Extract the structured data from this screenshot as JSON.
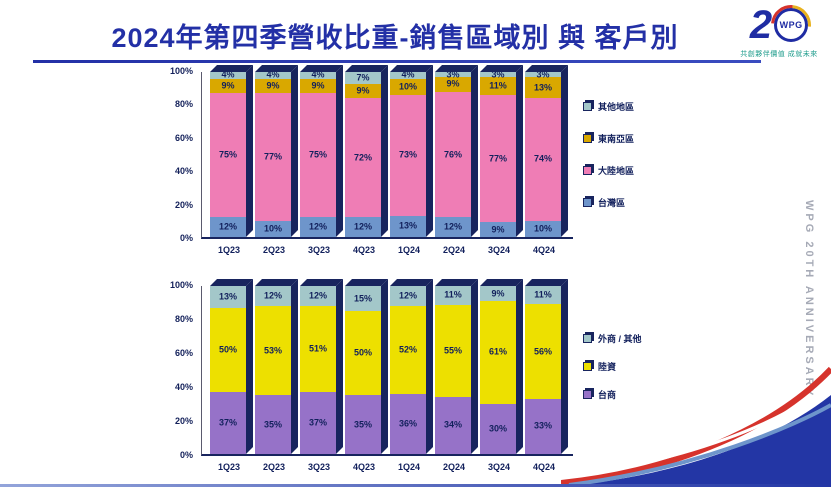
{
  "title": "2024年第四季營收比重-銷售區域別 與 客戶別",
  "side_text": "WPG 20TH ANNIVERSARY",
  "logo": {
    "two": "2",
    "wpg": "WPG",
    "slogan": "共創夥伴價值 成就未來"
  },
  "chart_data": [
    {
      "type": "bar",
      "name": "銷售區域別",
      "stacked": true,
      "unit": "%",
      "ylim": [
        0,
        100
      ],
      "yticks": [
        "0%",
        "20%",
        "40%",
        "60%",
        "80%",
        "100%"
      ],
      "categories": [
        "1Q23",
        "2Q23",
        "3Q23",
        "4Q23",
        "1Q24",
        "2Q24",
        "3Q24",
        "4Q24"
      ],
      "series": [
        {
          "name": "台灣區",
          "color": "#6E95CB",
          "values": [
            12,
            10,
            12,
            12,
            13,
            12,
            9,
            10
          ]
        },
        {
          "name": "大陸地區",
          "color": "#EF7DB5",
          "values": [
            75,
            77,
            75,
            72,
            73,
            76,
            77,
            74
          ]
        },
        {
          "name": "東南亞區",
          "color": "#D9A800",
          "values": [
            9,
            9,
            9,
            9,
            10,
            9,
            11,
            13
          ]
        },
        {
          "name": "其他地區",
          "color": "#A3C7C9",
          "values": [
            4,
            4,
            4,
            7,
            4,
            3,
            3,
            3
          ]
        }
      ],
      "legend": [
        "其他地區",
        "東南亞區",
        "大陸地區",
        "台灣區"
      ],
      "legend_position": "right",
      "grid": false
    },
    {
      "type": "bar",
      "name": "客戶別",
      "stacked": true,
      "unit": "%",
      "ylim": [
        0,
        100
      ],
      "yticks": [
        "0%",
        "20%",
        "40%",
        "60%",
        "80%",
        "100%"
      ],
      "categories": [
        "1Q23",
        "2Q23",
        "3Q23",
        "4Q23",
        "1Q24",
        "2Q24",
        "3Q24",
        "4Q24"
      ],
      "series": [
        {
          "name": "台商",
          "color": "#9672C8",
          "values": [
            37,
            35,
            37,
            35,
            36,
            34,
            30,
            33
          ]
        },
        {
          "name": "陸資",
          "color": "#EDE000",
          "values": [
            50,
            53,
            51,
            50,
            52,
            55,
            61,
            56
          ]
        },
        {
          "name": "外商 / 其他",
          "color": "#A3C7C9",
          "values": [
            13,
            12,
            12,
            15,
            12,
            11,
            9,
            11
          ]
        }
      ],
      "legend": [
        "外商 / 其他",
        "陸資",
        "台商"
      ],
      "legend_position": "right",
      "grid": false
    }
  ]
}
